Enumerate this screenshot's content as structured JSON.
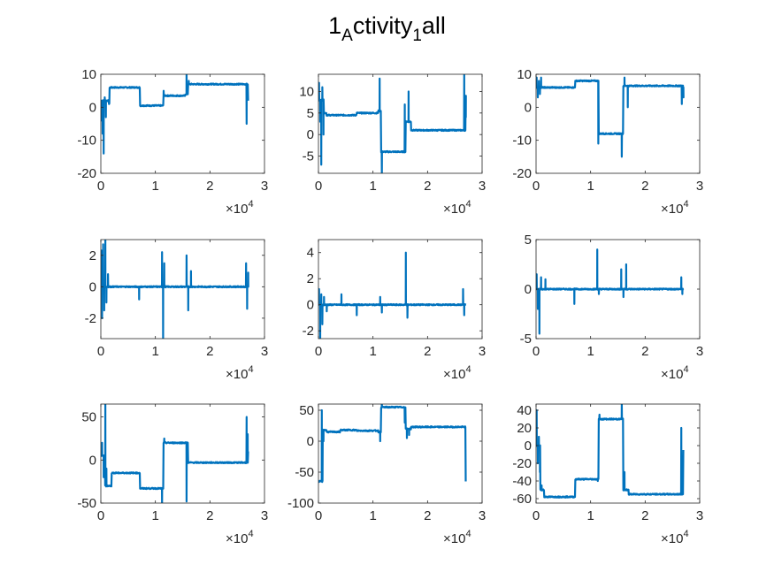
{
  "figure": {
    "title_parts": [
      "1",
      "A",
      "ctivity",
      "1",
      "all"
    ],
    "line_color": "#0072BD",
    "axis_color": "#262626",
    "background": "#ffffff"
  },
  "chart_data": [
    {
      "type": "line",
      "xlim": [
        0,
        30000
      ],
      "ylim": [
        -20,
        10
      ],
      "xticks": [
        0,
        10000,
        20000,
        30000
      ],
      "xtick_labels": [
        "0",
        "1",
        "2",
        "3"
      ],
      "yticks": [
        -20,
        -10,
        0,
        10
      ],
      "ytick_labels": [
        "-20",
        "-10",
        "0",
        "10"
      ],
      "x_exponent_label": "×10^4",
      "segments": [
        [
          0,
          2
        ],
        [
          1500,
          1
        ],
        [
          1600,
          6
        ],
        [
          7000,
          6
        ],
        [
          7200,
          0.5
        ],
        [
          11000,
          0.5
        ],
        [
          11500,
          3.5
        ],
        [
          15500,
          4
        ],
        [
          16000,
          7
        ],
        [
          26500,
          7
        ],
        [
          27000,
          2
        ]
      ],
      "spikes": [
        [
          100,
          -4
        ],
        [
          300,
          -8
        ],
        [
          500,
          -14
        ],
        [
          700,
          3
        ],
        [
          900,
          -3
        ],
        [
          1200,
          2
        ],
        [
          11500,
          5
        ],
        [
          15700,
          11
        ],
        [
          16100,
          8
        ],
        [
          26700,
          -5
        ],
        [
          26900,
          6
        ]
      ]
    },
    {
      "type": "line",
      "xlim": [
        0,
        30000
      ],
      "ylim": [
        -9,
        14
      ],
      "xticks": [
        0,
        10000,
        20000,
        30000
      ],
      "xtick_labels": [
        "0",
        "1",
        "2",
        "3"
      ],
      "yticks": [
        -5,
        0,
        5,
        10
      ],
      "ytick_labels": [
        "-5",
        "0",
        "5",
        "10"
      ],
      "x_exponent_label": "×10^4",
      "segments": [
        [
          0,
          8
        ],
        [
          1000,
          5
        ],
        [
          1500,
          4.5
        ],
        [
          7000,
          5
        ],
        [
          11000,
          5.5
        ],
        [
          11500,
          -4
        ],
        [
          15500,
          -4
        ],
        [
          16000,
          3
        ],
        [
          17000,
          1
        ],
        [
          26500,
          1
        ],
        [
          27000,
          9
        ]
      ],
      "spikes": [
        [
          100,
          12
        ],
        [
          300,
          3
        ],
        [
          500,
          -7
        ],
        [
          700,
          11
        ],
        [
          900,
          0
        ],
        [
          11200,
          13
        ],
        [
          11600,
          -9
        ],
        [
          15800,
          7
        ],
        [
          16500,
          10
        ],
        [
          26700,
          14
        ],
        [
          27000,
          4
        ]
      ]
    },
    {
      "type": "line",
      "xlim": [
        0,
        30000
      ],
      "ylim": [
        -20,
        10
      ],
      "xticks": [
        0,
        10000,
        20000,
        30000
      ],
      "xtick_labels": [
        "0",
        "1",
        "2",
        "3"
      ],
      "yticks": [
        -20,
        -10,
        0,
        10
      ],
      "ytick_labels": [
        "-20",
        "-10",
        "0",
        "10"
      ],
      "x_exponent_label": "×10^4",
      "segments": [
        [
          0,
          6
        ],
        [
          1500,
          6
        ],
        [
          7000,
          6
        ],
        [
          7200,
          8
        ],
        [
          11000,
          8
        ],
        [
          11500,
          -8
        ],
        [
          15500,
          -8
        ],
        [
          16000,
          6.5
        ],
        [
          26500,
          6.5
        ],
        [
          27000,
          3
        ]
      ],
      "spikes": [
        [
          100,
          9
        ],
        [
          300,
          3
        ],
        [
          500,
          8
        ],
        [
          700,
          4
        ],
        [
          900,
          9
        ],
        [
          11400,
          -11
        ],
        [
          15700,
          -15
        ],
        [
          16200,
          9
        ],
        [
          16800,
          0
        ],
        [
          26700,
          1
        ],
        [
          27000,
          6
        ]
      ]
    },
    {
      "type": "line",
      "xlim": [
        0,
        30000
      ],
      "ylim": [
        -3.3,
        3
      ],
      "xticks": [
        0,
        10000,
        20000,
        30000
      ],
      "xtick_labels": [
        "0",
        "1",
        "2",
        "3"
      ],
      "yticks": [
        -2,
        0,
        2
      ],
      "ytick_labels": [
        "-2",
        "0",
        "2"
      ],
      "x_exponent_label": "×10^4",
      "segments": [
        [
          0,
          0
        ],
        [
          27000,
          0
        ]
      ],
      "spikes": [
        [
          100,
          2.3
        ],
        [
          200,
          -2
        ],
        [
          400,
          2.7
        ],
        [
          600,
          -1.5
        ],
        [
          800,
          3
        ],
        [
          1000,
          -1
        ],
        [
          1300,
          0.8
        ],
        [
          7000,
          -0.8
        ],
        [
          11200,
          2.2
        ],
        [
          11400,
          -3.3
        ],
        [
          11600,
          1.5
        ],
        [
          15700,
          2
        ],
        [
          16000,
          -1.5
        ],
        [
          16500,
          1
        ],
        [
          26600,
          1.5
        ],
        [
          26800,
          -1.4
        ],
        [
          27000,
          0.9
        ]
      ]
    },
    {
      "type": "line",
      "xlim": [
        0,
        30000
      ],
      "ylim": [
        -2.6,
        5
      ],
      "xticks": [
        0,
        10000,
        20000,
        30000
      ],
      "xtick_labels": [
        "0",
        "1",
        "2",
        "3"
      ],
      "yticks": [
        -2,
        0,
        2,
        4
      ],
      "ytick_labels": [
        "-2",
        "0",
        "2",
        "4"
      ],
      "x_exponent_label": "×10^4",
      "segments": [
        [
          0,
          0
        ],
        [
          27000,
          0
        ]
      ],
      "spikes": [
        [
          100,
          1.2
        ],
        [
          300,
          -2.6
        ],
        [
          500,
          0.8
        ],
        [
          700,
          -1.5
        ],
        [
          1000,
          0.6
        ],
        [
          1500,
          -0.5
        ],
        [
          4200,
          0.8
        ],
        [
          7000,
          -0.8
        ],
        [
          11300,
          0.6
        ],
        [
          11600,
          -0.6
        ],
        [
          16000,
          4
        ],
        [
          16300,
          -1
        ],
        [
          26500,
          1.2
        ],
        [
          26700,
          -0.8
        ]
      ]
    },
    {
      "type": "line",
      "xlim": [
        0,
        30000
      ],
      "ylim": [
        -5,
        5
      ],
      "xticks": [
        0,
        10000,
        20000,
        30000
      ],
      "xtick_labels": [
        "0",
        "1",
        "2",
        "3"
      ],
      "yticks": [
        -5,
        0,
        5
      ],
      "ytick_labels": [
        "-5",
        "0",
        "5"
      ],
      "x_exponent_label": "×10^4",
      "segments": [
        [
          0,
          0
        ],
        [
          27000,
          0
        ]
      ],
      "spikes": [
        [
          100,
          1.5
        ],
        [
          300,
          -2
        ],
        [
          600,
          -4.5
        ],
        [
          900,
          1.2
        ],
        [
          1700,
          1
        ],
        [
          7000,
          -1.5
        ],
        [
          11200,
          4
        ],
        [
          11500,
          -0.5
        ],
        [
          15600,
          2
        ],
        [
          16000,
          -0.8
        ],
        [
          16500,
          2.5
        ],
        [
          26600,
          1.2
        ],
        [
          26800,
          -0.5
        ]
      ]
    },
    {
      "type": "line",
      "xlim": [
        0,
        30000
      ],
      "ylim": [
        -50,
        65
      ],
      "xticks": [
        0,
        10000,
        20000,
        30000
      ],
      "xtick_labels": [
        "0",
        "1",
        "2",
        "3"
      ],
      "yticks": [
        -50,
        0,
        50
      ],
      "ytick_labels": [
        "-50",
        "0",
        "50"
      ],
      "x_exponent_label": "×10^4",
      "segments": [
        [
          0,
          5
        ],
        [
          800,
          -30
        ],
        [
          1500,
          -30
        ],
        [
          2000,
          -15
        ],
        [
          7000,
          -15
        ],
        [
          7200,
          -33
        ],
        [
          11000,
          -33
        ],
        [
          11500,
          20
        ],
        [
          15500,
          20
        ],
        [
          16000,
          -3
        ],
        [
          26500,
          -3
        ],
        [
          27000,
          10
        ]
      ],
      "spikes": [
        [
          200,
          20
        ],
        [
          500,
          -20
        ],
        [
          800,
          65
        ],
        [
          1000,
          -10
        ],
        [
          11200,
          -50
        ],
        [
          11600,
          25
        ],
        [
          15700,
          -48
        ],
        [
          26700,
          50
        ],
        [
          26900,
          30
        ]
      ]
    },
    {
      "type": "line",
      "xlim": [
        0,
        30000
      ],
      "ylim": [
        -100,
        60
      ],
      "xticks": [
        0,
        10000,
        20000,
        30000
      ],
      "xtick_labels": [
        "0",
        "1",
        "2",
        "3"
      ],
      "yticks": [
        -100,
        -50,
        0,
        50
      ],
      "ytick_labels": [
        "-100",
        "-50",
        "0",
        "50"
      ],
      "x_exponent_label": "×10^4",
      "segments": [
        [
          0,
          -65
        ],
        [
          500,
          -65
        ],
        [
          800,
          18
        ],
        [
          1500,
          15
        ],
        [
          4000,
          18
        ],
        [
          7000,
          17
        ],
        [
          11000,
          15
        ],
        [
          11500,
          55
        ],
        [
          15500,
          55
        ],
        [
          16000,
          20
        ],
        [
          17000,
          23
        ],
        [
          26000,
          23
        ],
        [
          27000,
          -65
        ]
      ],
      "spikes": [
        [
          600,
          50
        ],
        [
          900,
          0
        ],
        [
          11300,
          0
        ],
        [
          11600,
          60
        ],
        [
          15800,
          30
        ],
        [
          16200,
          5
        ],
        [
          16600,
          10
        ]
      ]
    },
    {
      "type": "line",
      "xlim": [
        0,
        30000
      ],
      "ylim": [
        -65,
        47
      ],
      "xticks": [
        0,
        10000,
        20000,
        30000
      ],
      "xtick_labels": [
        "0",
        "1",
        "2",
        "3"
      ],
      "yticks": [
        -60,
        -40,
        -20,
        0,
        20,
        40
      ],
      "ytick_labels": [
        "-60",
        "-40",
        "-20",
        "0",
        "20",
        "40"
      ],
      "x_exponent_label": "×10^4",
      "segments": [
        [
          0,
          0
        ],
        [
          800,
          -50
        ],
        [
          1500,
          -58
        ],
        [
          7000,
          -58
        ],
        [
          7200,
          -38
        ],
        [
          11000,
          -38
        ],
        [
          11500,
          30
        ],
        [
          15500,
          30
        ],
        [
          16000,
          -50
        ],
        [
          17000,
          -55
        ],
        [
          26500,
          -55
        ],
        [
          27000,
          -5
        ]
      ],
      "spikes": [
        [
          100,
          40
        ],
        [
          300,
          -20
        ],
        [
          500,
          10
        ],
        [
          700,
          -30
        ],
        [
          1000,
          -45
        ],
        [
          11300,
          -40
        ],
        [
          11600,
          35
        ],
        [
          15700,
          47
        ],
        [
          16200,
          -30
        ],
        [
          26600,
          20
        ],
        [
          26800,
          -20
        ]
      ]
    }
  ]
}
